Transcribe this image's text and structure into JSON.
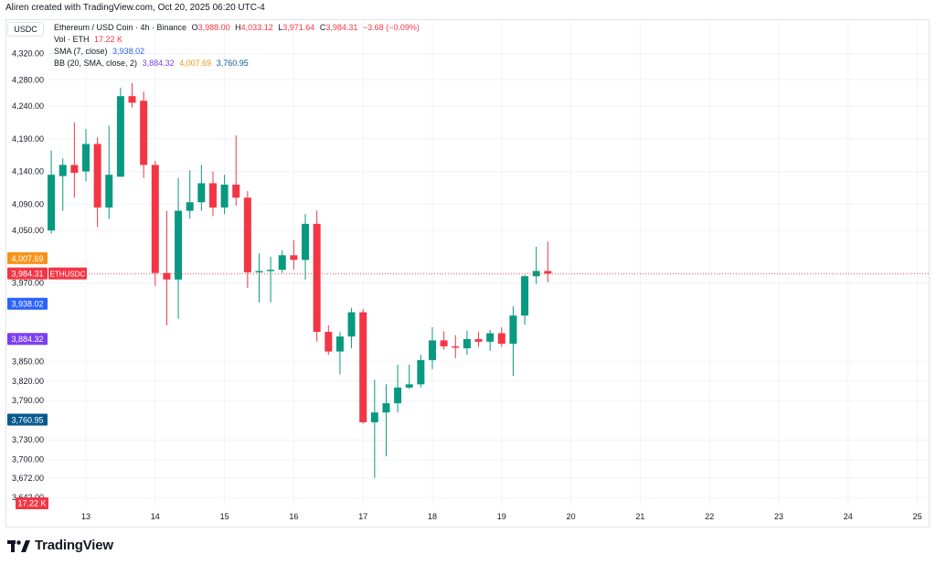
{
  "header": {
    "created": "Aliren created with TradingView.com, Oct 20, 2025 06:20 UTC-4"
  },
  "currency_button": "USDC",
  "legend": {
    "title": "Ethereum / USD Coin · 4h · Binance",
    "o_label": "O",
    "o": "3,988.00",
    "h_label": "H",
    "h": "4,033.12",
    "l_label": "L",
    "l": "3,971.64",
    "c_label": "C",
    "c": "3,984.31",
    "change": "−3.68 (−0.09%)",
    "vol_label": "Vol · ETH",
    "vol": "17.22 K",
    "sma_label": "SMA (7, close)",
    "sma": "3,938.02",
    "bb_label": "BB (20, SMA, close, 2)",
    "bb_basis": "3,884.32",
    "bb_upper": "4,007.69",
    "bb_lower": "3,760.95"
  },
  "brand": "TradingView",
  "colors": {
    "up": "#089981",
    "down": "#f23645",
    "sma": "#2962ff",
    "bb_basis": "#7b3ff2",
    "bb_upper": "#f7931a",
    "bb_lower": "#0b5a8f",
    "volume_badge": "#f23645"
  },
  "chart_data": {
    "type": "candlestick",
    "symbol": "ETHUSDC",
    "interval": "4h",
    "ylim": [
      3620,
      4360
    ],
    "y_tick_labels": [
      "4,320.00",
      "4,280.00",
      "4,240.00",
      "4,190.00",
      "4,140.00",
      "4,090.00",
      "4,050.00",
      "3,970.00",
      "3,850.00",
      "3,820.00",
      "3,790.00",
      "3,730.00",
      "3,700.00",
      "3,672.00",
      "3,642.00"
    ],
    "x_tick_labels": [
      "13",
      "14",
      "15",
      "16",
      "17",
      "18",
      "19",
      "20",
      "21",
      "22",
      "23",
      "24",
      "25"
    ],
    "price_labels": [
      {
        "name": "BB upper",
        "value": 4007.69,
        "text": "4,007.69",
        "color": "#f7931a"
      },
      {
        "name": "ETHUSDC",
        "value": 3984.31,
        "text": "3,984.31",
        "tag": "ETHUSDC",
        "color": "#f23645"
      },
      {
        "name": "SMA",
        "value": 3938.02,
        "text": "3,938.02",
        "color": "#2962ff"
      },
      {
        "name": "BB basis",
        "value": 3884.32,
        "text": "3,884.32",
        "color": "#7b3ff2"
      },
      {
        "name": "BB lower",
        "value": 3760.95,
        "text": "3,760.95",
        "color": "#0b5a8f"
      }
    ],
    "volume_badge": "17.22 K",
    "candles": [
      {
        "o": 4050,
        "h": 4172,
        "l": 4045,
        "c": 4135
      },
      {
        "o": 4133,
        "h": 4160,
        "l": 4080,
        "c": 4150
      },
      {
        "o": 4150,
        "h": 4215,
        "l": 4100,
        "c": 4138
      },
      {
        "o": 4140,
        "h": 4205,
        "l": 4125,
        "c": 4182
      },
      {
        "o": 4182,
        "h": 4192,
        "l": 4055,
        "c": 4085
      },
      {
        "o": 4085,
        "h": 4210,
        "l": 4068,
        "c": 4135
      },
      {
        "o": 4132,
        "h": 4268,
        "l": 4132,
        "c": 4255
      },
      {
        "o": 4255,
        "h": 4275,
        "l": 4238,
        "c": 4245
      },
      {
        "o": 4248,
        "h": 4262,
        "l": 4130,
        "c": 4150
      },
      {
        "o": 4150,
        "h": 4156,
        "l": 3965,
        "c": 3985
      },
      {
        "o": 3985,
        "h": 4080,
        "l": 3905,
        "c": 3975
      },
      {
        "o": 3975,
        "h": 4130,
        "l": 3915,
        "c": 4080
      },
      {
        "o": 4080,
        "h": 4142,
        "l": 4068,
        "c": 4093
      },
      {
        "o": 4093,
        "h": 4150,
        "l": 4080,
        "c": 4122
      },
      {
        "o": 4122,
        "h": 4140,
        "l": 4072,
        "c": 4085
      },
      {
        "o": 4085,
        "h": 4135,
        "l": 4075,
        "c": 4120
      },
      {
        "o": 4120,
        "h": 4195,
        "l": 4088,
        "c": 4100
      },
      {
        "o": 4100,
        "h": 4110,
        "l": 3962,
        "c": 3986
      },
      {
        "o": 3986,
        "h": 4015,
        "l": 3940,
        "c": 3988
      },
      {
        "o": 3988,
        "h": 4010,
        "l": 3940,
        "c": 3990
      },
      {
        "o": 3990,
        "h": 4020,
        "l": 3985,
        "c": 4012
      },
      {
        "o": 4012,
        "h": 4035,
        "l": 3990,
        "c": 4005
      },
      {
        "o": 4005,
        "h": 4075,
        "l": 3975,
        "c": 4060
      },
      {
        "o": 4060,
        "h": 4080,
        "l": 3880,
        "c": 3895
      },
      {
        "o": 3895,
        "h": 3905,
        "l": 3860,
        "c": 3865
      },
      {
        "o": 3865,
        "h": 3895,
        "l": 3830,
        "c": 3888
      },
      {
        "o": 3888,
        "h": 3932,
        "l": 3870,
        "c": 3925
      },
      {
        "o": 3925,
        "h": 3930,
        "l": 3755,
        "c": 3757
      },
      {
        "o": 3757,
        "h": 3822,
        "l": 3672,
        "c": 3772
      },
      {
        "o": 3772,
        "h": 3815,
        "l": 3705,
        "c": 3786
      },
      {
        "o": 3786,
        "h": 3845,
        "l": 3772,
        "c": 3810
      },
      {
        "o": 3810,
        "h": 3845,
        "l": 3808,
        "c": 3815
      },
      {
        "o": 3815,
        "h": 3860,
        "l": 3810,
        "c": 3852
      },
      {
        "o": 3852,
        "h": 3902,
        "l": 3838,
        "c": 3882
      },
      {
        "o": 3882,
        "h": 3896,
        "l": 3868,
        "c": 3873
      },
      {
        "o": 3873,
        "h": 3890,
        "l": 3855,
        "c": 3872
      },
      {
        "o": 3870,
        "h": 3897,
        "l": 3860,
        "c": 3884
      },
      {
        "o": 3884,
        "h": 3895,
        "l": 3872,
        "c": 3880
      },
      {
        "o": 3880,
        "h": 3898,
        "l": 3866,
        "c": 3893
      },
      {
        "o": 3893,
        "h": 3902,
        "l": 3872,
        "c": 3877
      },
      {
        "o": 3877,
        "h": 3934,
        "l": 3828,
        "c": 3920
      },
      {
        "o": 3920,
        "h": 3982,
        "l": 3906,
        "c": 3980
      },
      {
        "o": 3980,
        "h": 4025,
        "l": 3968,
        "c": 3988
      },
      {
        "o": 3988,
        "h": 4033,
        "l": 3971,
        "c": 3984
      }
    ]
  }
}
